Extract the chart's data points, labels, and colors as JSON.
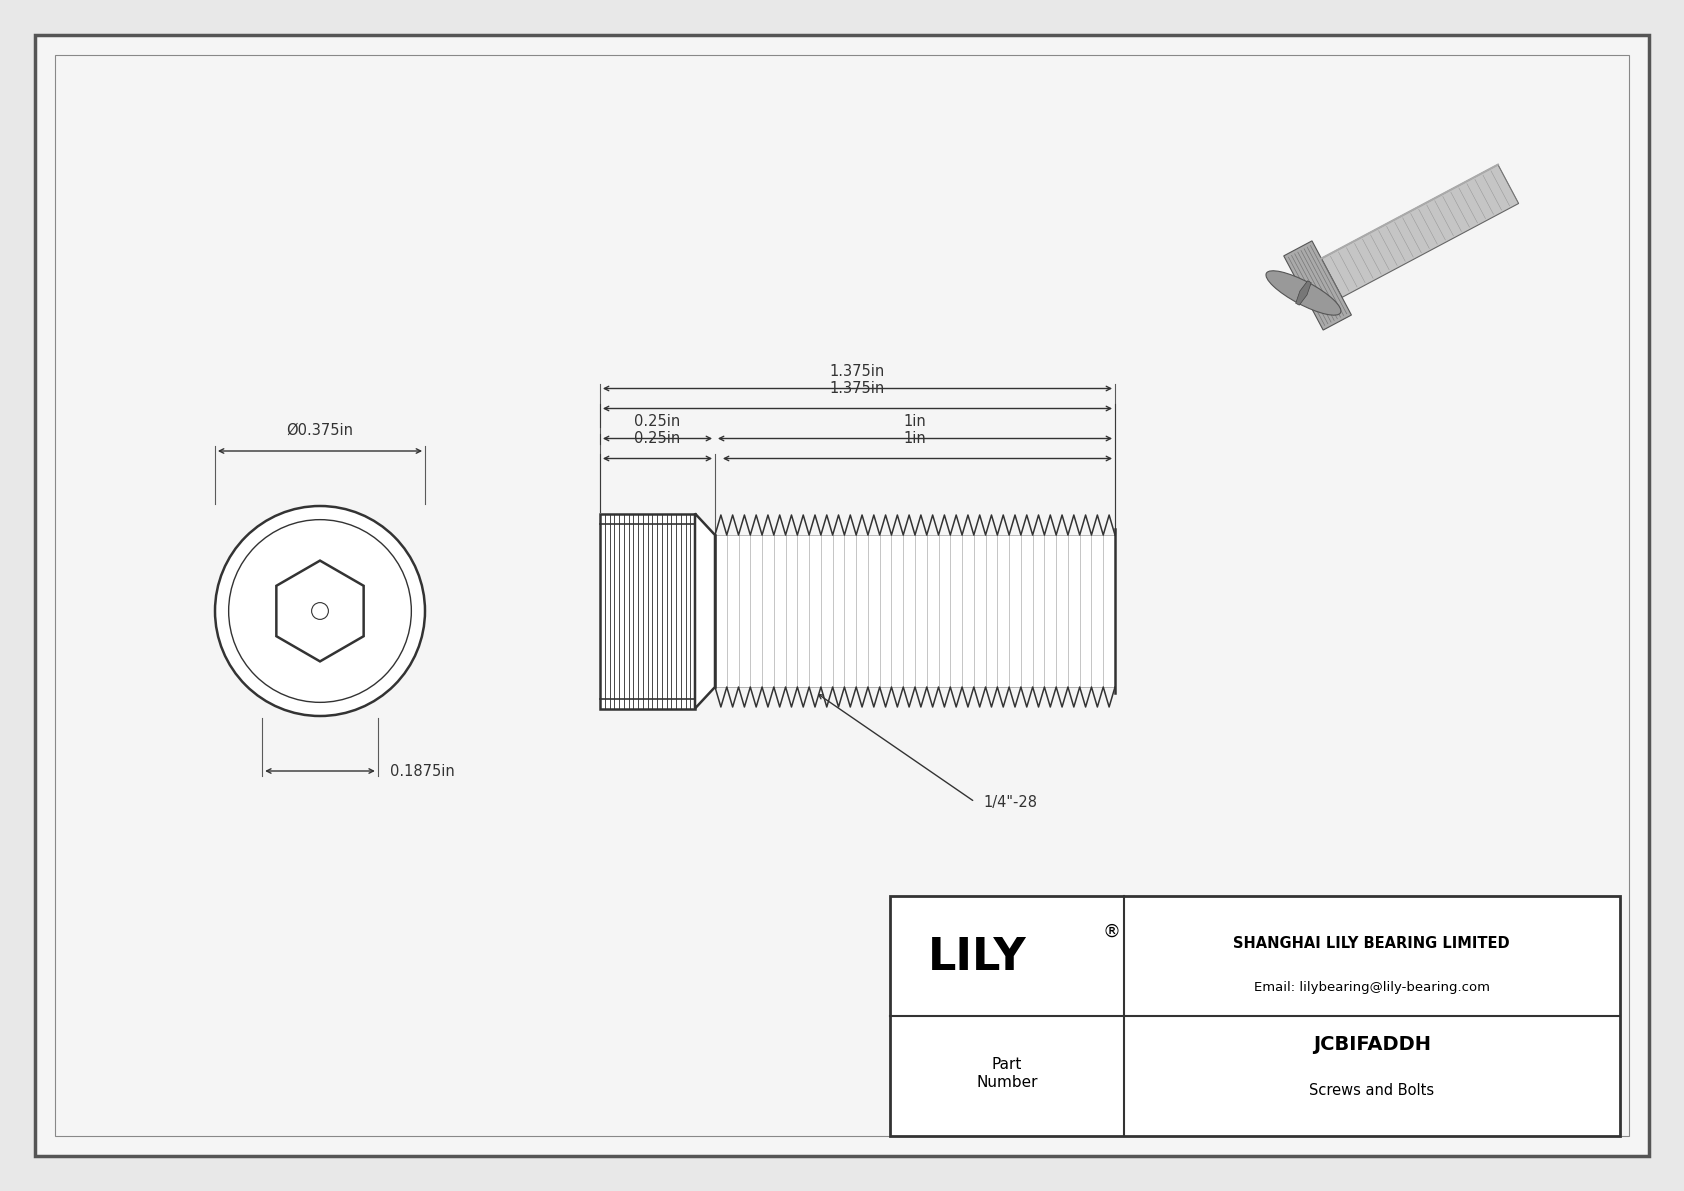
{
  "bg_color": "#e8e8e8",
  "drawing_bg": "#f5f5f5",
  "border_color": "#555555",
  "line_color": "#333333",
  "dim_color": "#333333",
  "title": "JCBIFADDH",
  "subtitle": "Screws and Bolts",
  "company": "SHANGHAI LILY BEARING LIMITED",
  "email": "Email: lilybearing@lily-bearing.com",
  "part_label": "Part\nNumber",
  "logo": "LILY",
  "logo_sup": "®",
  "dim_head_width": "Ø0.375in",
  "dim_head_height": "0.1875in",
  "dim_total_length": "1.375in",
  "dim_thread_length": "1in",
  "dim_shank_length": "0.25in",
  "thread_label": "1/4\"-28"
}
